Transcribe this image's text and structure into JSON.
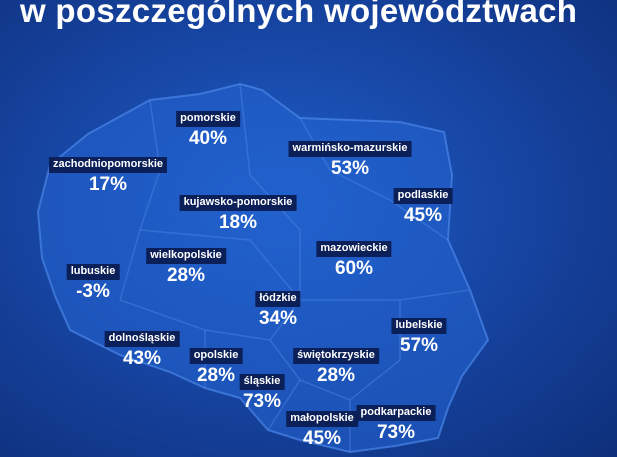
{
  "title": "w poszczególnych województwach",
  "regions": [
    {
      "name": "pomorskie",
      "value": "40%"
    },
    {
      "name": "zachodniopomorskie",
      "value": "17%"
    },
    {
      "name": "warmińsko-mazurskie",
      "value": "53%"
    },
    {
      "name": "podlaskie",
      "value": "45%"
    },
    {
      "name": "kujawsko-pomorskie",
      "value": "18%"
    },
    {
      "name": "mazowieckie",
      "value": "60%"
    },
    {
      "name": "wielkopolskie",
      "value": "28%"
    },
    {
      "name": "lubuskie",
      "value": "-3%"
    },
    {
      "name": "łódzkie",
      "value": "34%"
    },
    {
      "name": "lubelskie",
      "value": "57%"
    },
    {
      "name": "dolnośląskie",
      "value": "43%"
    },
    {
      "name": "opolskie",
      "value": "28%"
    },
    {
      "name": "świętokrzyskie",
      "value": "28%"
    },
    {
      "name": "śląskie",
      "value": "73%"
    },
    {
      "name": "małopolskie",
      "value": "45%"
    },
    {
      "name": "podkarpackie",
      "value": "73%"
    }
  ]
}
